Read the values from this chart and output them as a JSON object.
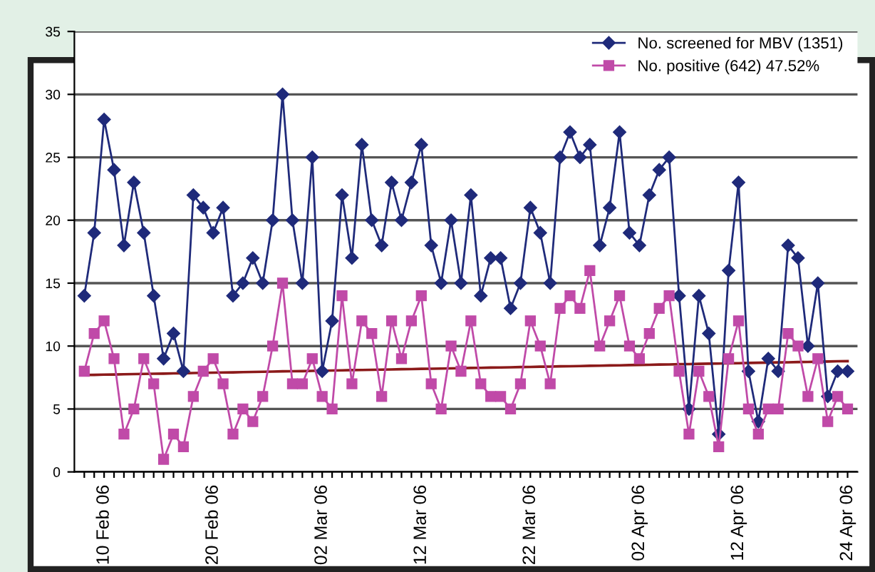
{
  "chart_data": {
    "type": "line",
    "categories": [
      null,
      null,
      "10 Feb 06",
      null,
      null,
      null,
      null,
      null,
      null,
      null,
      null,
      null,
      null,
      "20 Feb 06",
      null,
      null,
      null,
      null,
      null,
      null,
      null,
      null,
      null,
      null,
      "02 Mar 06",
      null,
      null,
      null,
      null,
      null,
      null,
      null,
      null,
      null,
      "12 Mar 06",
      null,
      null,
      null,
      null,
      null,
      null,
      null,
      null,
      null,
      null,
      "22 Mar 06",
      null,
      null,
      null,
      null,
      null,
      null,
      null,
      null,
      null,
      null,
      "02 Apr 06",
      null,
      null,
      null,
      null,
      null,
      null,
      null,
      null,
      null,
      "12 Apr 06",
      null,
      null,
      null,
      null,
      null,
      null,
      null,
      null,
      null,
      null,
      "24 Apr 06"
    ],
    "series": [
      {
        "name": "No. screened for MBV (1351)",
        "color": "#1f2a7a",
        "marker": "diamond",
        "values": [
          14,
          19,
          28,
          24,
          18,
          23,
          19,
          14,
          9,
          11,
          8,
          22,
          21,
          19,
          21,
          14,
          15,
          17,
          15,
          20,
          30,
          20,
          15,
          25,
          8,
          12,
          22,
          17,
          26,
          20,
          18,
          23,
          20,
          23,
          26,
          18,
          15,
          20,
          15,
          22,
          14,
          17,
          17,
          13,
          15,
          21,
          19,
          15,
          25,
          27,
          25,
          26,
          18,
          21,
          27,
          19,
          18,
          22,
          24,
          25,
          14,
          5,
          14,
          11,
          3,
          16,
          23,
          8,
          4,
          9,
          8,
          18,
          17,
          10,
          15,
          6,
          8,
          8
        ]
      },
      {
        "name": "No. positive (642) 47.52%",
        "color": "#c04aa8",
        "marker": "square",
        "values": [
          8,
          11,
          12,
          9,
          3,
          5,
          9,
          7,
          1,
          3,
          2,
          6,
          8,
          9,
          7,
          3,
          5,
          4,
          6,
          10,
          15,
          7,
          7,
          9,
          6,
          5,
          14,
          7,
          12,
          11,
          6,
          12,
          9,
          12,
          14,
          7,
          5,
          10,
          8,
          12,
          7,
          6,
          6,
          5,
          7,
          12,
          10,
          7,
          13,
          14,
          13,
          16,
          10,
          12,
          14,
          10,
          9,
          11,
          13,
          14,
          8,
          3,
          8,
          6,
          2,
          9,
          12,
          5,
          3,
          5,
          5,
          11,
          10,
          6,
          9,
          4,
          6,
          5
        ]
      },
      {
        "color": "#8b1a1a",
        "marker": "none",
        "values": [
          7.7,
          7.71,
          7.73,
          7.74,
          7.76,
          7.77,
          7.79,
          7.8,
          7.81,
          7.83,
          7.84,
          7.86,
          7.87,
          7.89,
          7.9,
          7.91,
          7.93,
          7.94,
          7.96,
          7.97,
          7.99,
          8.0,
          8.01,
          8.03,
          8.04,
          8.06,
          8.07,
          8.09,
          8.1,
          8.11,
          8.13,
          8.14,
          8.16,
          8.17,
          8.19,
          8.2,
          8.21,
          8.23,
          8.24,
          8.26,
          8.27,
          8.29,
          8.3,
          8.31,
          8.33,
          8.34,
          8.36,
          8.37,
          8.39,
          8.4,
          8.41,
          8.43,
          8.44,
          8.46,
          8.47,
          8.49,
          8.5,
          8.51,
          8.53,
          8.54,
          8.56,
          8.57,
          8.59,
          8.6,
          8.61,
          8.63,
          8.64,
          8.66,
          8.67,
          8.69,
          8.7,
          8.71,
          8.73,
          8.74,
          8.76,
          8.77,
          8.79,
          8.8
        ]
      }
    ],
    "ylim": [
      0,
      35
    ],
    "yticks": [
      0,
      5,
      10,
      15,
      20,
      25,
      30,
      35
    ],
    "grid": "y",
    "legend": "top right",
    "line_style": "solid"
  }
}
